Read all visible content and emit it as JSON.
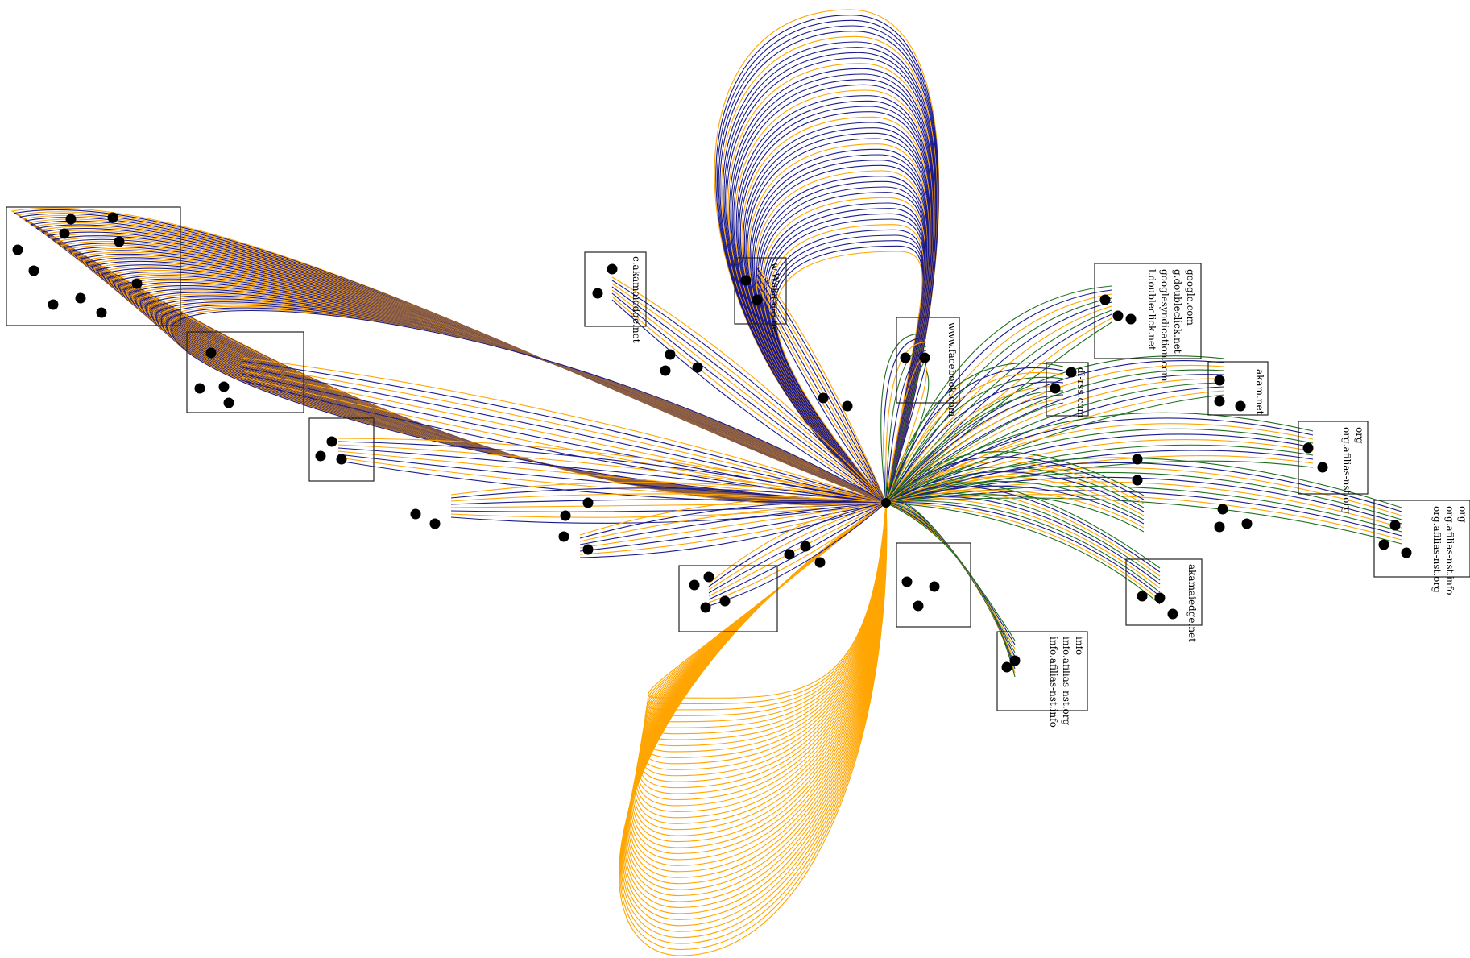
{
  "colors": {
    "background": "#ffffff",
    "edge_blue": "#1a1a8c",
    "edge_orange": "#ffa500",
    "edge_green": "#1e6e1e",
    "node": "#000000",
    "cluster_border": "#222222"
  },
  "hub": {
    "name": "hub-node"
  },
  "clusters": [
    {
      "id": "c-akamaiedge",
      "labels": [
        "c.akamaiedge.net"
      ]
    },
    {
      "id": "wildcard-akamai",
      "labels": [
        "w.Wakamai.net"
      ]
    },
    {
      "id": "google",
      "labels": [
        "google.com",
        "g.doubleclick.net",
        "googlesyndication.com",
        "l.doubleclick.net"
      ]
    },
    {
      "id": "facebook",
      "labels": [
        "www.facebook.com"
      ]
    },
    {
      "id": "akam",
      "labels": [
        "akam.net"
      ]
    },
    {
      "id": "dl-rss",
      "labels": [
        "dl-rss.com"
      ]
    },
    {
      "id": "org-afilias",
      "labels": [
        "org",
        "org.afilias-nst.org"
      ]
    },
    {
      "id": "org-afilias-info",
      "labels": [
        "org",
        "org.afilias-nst.info",
        "org.afilias-nst.org"
      ]
    },
    {
      "id": "akamaiedge",
      "labels": [
        "akamaiedge.net"
      ]
    },
    {
      "id": "info",
      "labels": [
        "info",
        "info.afilias-nst.org",
        "info.afilias-nst.info"
      ]
    },
    {
      "id": "cluster-left-large",
      "labels": []
    },
    {
      "id": "cluster-mid-left",
      "labels": []
    },
    {
      "id": "cluster-low-left",
      "labels": []
    },
    {
      "id": "cluster-center-low",
      "labels": []
    },
    {
      "id": "cluster-center-right",
      "labels": []
    }
  ]
}
